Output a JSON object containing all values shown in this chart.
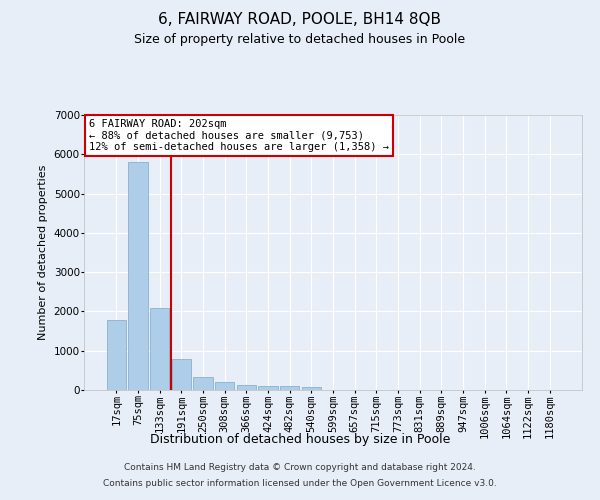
{
  "title": "6, FAIRWAY ROAD, POOLE, BH14 8QB",
  "subtitle": "Size of property relative to detached houses in Poole",
  "xlabel": "Distribution of detached houses by size in Poole",
  "ylabel": "Number of detached properties",
  "categories": [
    "17sqm",
    "75sqm",
    "133sqm",
    "191sqm",
    "250sqm",
    "308sqm",
    "366sqm",
    "424sqm",
    "482sqm",
    "540sqm",
    "599sqm",
    "657sqm",
    "715sqm",
    "773sqm",
    "831sqm",
    "889sqm",
    "947sqm",
    "1006sqm",
    "1064sqm",
    "1122sqm",
    "1180sqm"
  ],
  "values": [
    1780,
    5800,
    2080,
    800,
    340,
    200,
    120,
    110,
    95,
    80,
    0,
    0,
    0,
    0,
    0,
    0,
    0,
    0,
    0,
    0,
    0
  ],
  "bar_color": "#aecde8",
  "bar_edge_color": "#7aaac8",
  "property_vline_x": 2.5,
  "property_line_color": "#cc0000",
  "annotation_text": "6 FAIRWAY ROAD: 202sqm\n← 88% of detached houses are smaller (9,753)\n12% of semi-detached houses are larger (1,358) →",
  "annotation_box_facecolor": "#ffffff",
  "annotation_box_edgecolor": "#cc0000",
  "footer_line1": "Contains HM Land Registry data © Crown copyright and database right 2024.",
  "footer_line2": "Contains public sector information licensed under the Open Government Licence v3.0.",
  "background_color": "#e8eef8",
  "grid_color": "#ffffff",
  "ylim": [
    0,
    7000
  ],
  "yticks": [
    0,
    1000,
    2000,
    3000,
    4000,
    5000,
    6000,
    7000
  ],
  "title_fontsize": 11,
  "subtitle_fontsize": 9,
  "ylabel_fontsize": 8,
  "xlabel_fontsize": 9,
  "tick_fontsize": 7.5,
  "annotation_fontsize": 7.5,
  "footer_fontsize": 6.5
}
